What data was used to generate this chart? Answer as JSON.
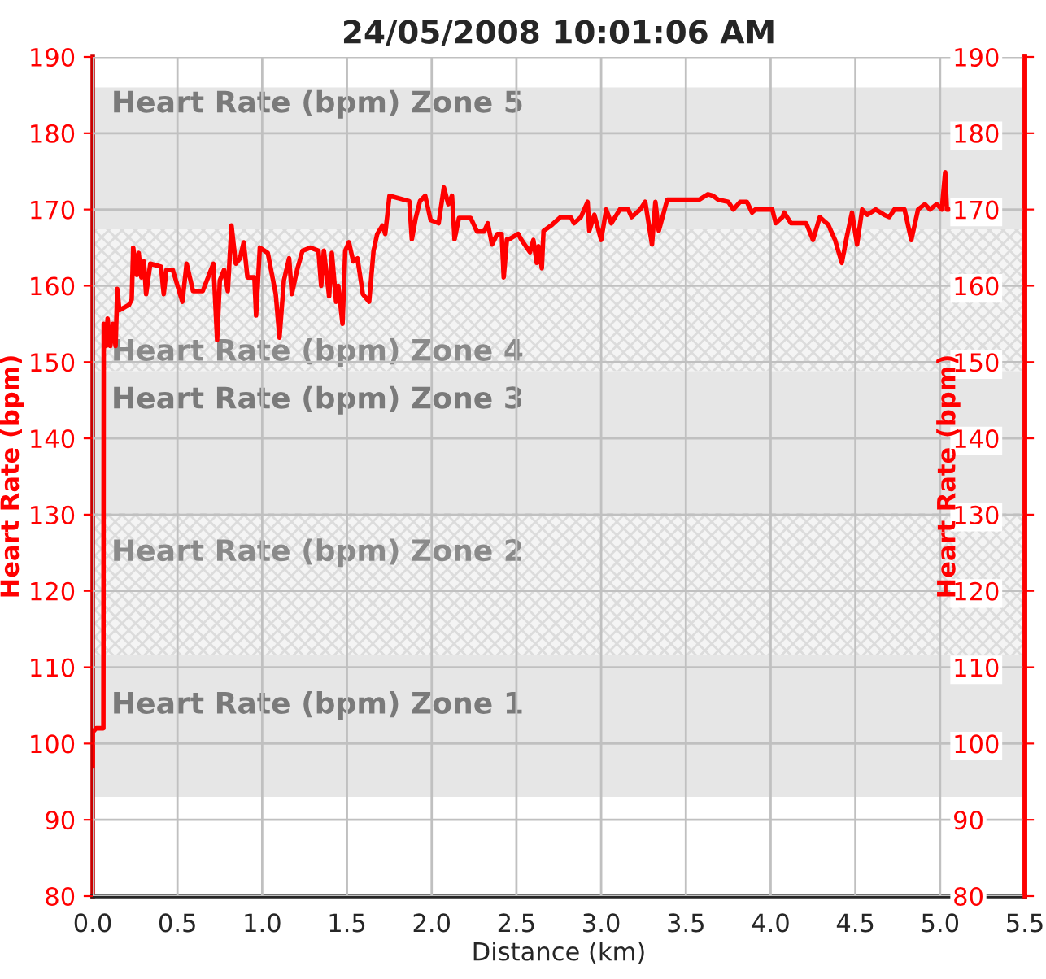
{
  "chart_data": {
    "type": "line",
    "title": "24/05/2008 10:01:06 AM",
    "xlabel": "Distance (km)",
    "ylabel": "Heart Rate (bpm)",
    "y2label": "Heart Rate (bpm)",
    "xlim": [
      0,
      5.5
    ],
    "xticks": [
      {
        "value": 0,
        "label": "0.0"
      },
      0.5,
      {
        "value": 1,
        "label": "1.0"
      },
      1.5,
      {
        "value": 2,
        "label": "2.0"
      },
      2.5,
      {
        "value": 3,
        "label": "3.0"
      },
      3.5,
      {
        "value": 4,
        "label": "4.0"
      },
      4.5,
      {
        "value": 5,
        "label": "5.0"
      },
      5.5
    ],
    "ylim": [
      80,
      190
    ],
    "yticks": [
      80,
      90,
      100,
      110,
      120,
      130,
      140,
      150,
      160,
      170,
      180,
      190
    ],
    "y2lim": [
      80,
      190
    ],
    "y2ticks": [
      80,
      90,
      100,
      110,
      120,
      130,
      140,
      150,
      160,
      170,
      180,
      190
    ],
    "grid": true,
    "marker": "none",
    "line_style": "solid",
    "bands": [
      {
        "axis": "y",
        "from": 167.4,
        "to": 186,
        "label": "Heart Rate (bpm) Zone 5",
        "color": "#e6e6e6"
      },
      {
        "axis": "y",
        "from": 148.8,
        "to": 167.4,
        "label": "Heart Rate (bpm) Zone 4",
        "color": "#f4f4f4"
      },
      {
        "axis": "y",
        "from": 130.2,
        "to": 148.8,
        "label": "Heart Rate (bpm) Zone 3",
        "color": "#e6e6e6"
      },
      {
        "axis": "y",
        "from": 111.6,
        "to": 130.2,
        "label": "Heart Rate (bpm) Zone 2",
        "color": "#f4f4f4"
      },
      {
        "axis": "y",
        "from": 93,
        "to": 111.6,
        "label": "Heart Rate (bpm) Zone 1",
        "color": "#e6e6e6"
      }
    ],
    "series": [
      {
        "color": "#ff0000",
        "x": [
          0,
          0,
          0.02,
          0.063,
          0.065,
          0.079,
          0.088,
          0.104,
          0.12,
          0.135,
          0.145,
          0.157,
          0.214,
          0.23,
          0.239,
          0.261,
          0.271,
          0.287,
          0.302,
          0.315,
          0.34,
          0.403,
          0.419,
          0.435,
          0.472,
          0.529,
          0.554,
          0.592,
          0.649,
          0.712,
          0.734,
          0.75,
          0.775,
          0.797,
          0.819,
          0.844,
          0.869,
          0.891,
          0.913,
          0.954,
          0.964,
          0.986,
          1.033,
          1.08,
          1.102,
          1.128,
          1.159,
          1.175,
          1.206,
          1.238,
          1.285,
          1.332,
          1.348,
          1.364,
          1.395,
          1.411,
          1.436,
          1.449,
          1.474,
          1.49,
          1.512,
          1.537,
          1.562,
          1.594,
          1.631,
          1.657,
          1.679,
          1.71,
          1.726,
          1.751,
          1.868,
          1.883,
          1.906,
          1.931,
          1.962,
          1.994,
          2.041,
          2.072,
          2.098,
          2.12,
          2.135,
          2.161,
          2.23,
          2.268,
          2.309,
          2.331,
          2.356,
          2.387,
          2.413,
          2.425,
          2.444,
          2.45,
          2.51,
          2.53,
          2.58,
          2.6,
          2.62,
          2.63,
          2.65,
          2.66,
          2.71,
          2.76,
          2.82,
          2.84,
          2.88,
          2.92,
          2.93,
          2.96,
          3.0,
          3.03,
          3.06,
          3.11,
          3.16,
          3.18,
          3.23,
          3.26,
          3.3,
          3.32,
          3.34,
          3.39,
          3.58,
          3.63,
          3.66,
          3.69,
          3.75,
          3.78,
          3.82,
          3.86,
          3.89,
          3.91,
          4.01,
          4.03,
          4.07,
          4.08,
          4.12,
          4.21,
          4.25,
          4.29,
          4.34,
          4.38,
          4.42,
          4.45,
          4.48,
          4.51,
          4.54,
          4.57,
          4.62,
          4.67,
          4.7,
          4.73,
          4.79,
          4.83,
          4.87,
          4.91,
          4.94,
          4.98,
          5.01,
          5.03,
          5.04,
          5.05
        ],
        "values": [
          97,
          101.5,
          102,
          102,
          155,
          152.1,
          155.7,
          152.1,
          155,
          152.1,
          159.6,
          156.8,
          157.5,
          158.2,
          165,
          161.4,
          164.3,
          161.1,
          163.2,
          158.9,
          162.9,
          162.5,
          158.9,
          162.1,
          162.1,
          157.9,
          162.9,
          159.3,
          159.3,
          162.9,
          152.9,
          160.7,
          162.1,
          159.3,
          167.9,
          162.9,
          163.6,
          165.7,
          161.1,
          161.1,
          156.1,
          165,
          164.3,
          158.9,
          153.2,
          160.7,
          163.6,
          158.9,
          162.1,
          164.6,
          165,
          164.6,
          160,
          164.6,
          158.6,
          164.3,
          157.9,
          160,
          155,
          164.6,
          165.7,
          163.2,
          163.6,
          158.9,
          157.9,
          164.6,
          166.8,
          167.9,
          166.8,
          171.8,
          171.1,
          166.1,
          168.9,
          171.1,
          171.8,
          168.6,
          168.2,
          172.9,
          170.7,
          171.8,
          166.1,
          168.9,
          168.9,
          167.1,
          167.1,
          168.2,
          165.4,
          166.8,
          166.8,
          161.1,
          166.1,
          166,
          166.8,
          166,
          164.4,
          166,
          163,
          165.2,
          162.3,
          167.2,
          168,
          169,
          169,
          168.2,
          169,
          171,
          167.2,
          169.3,
          166,
          170,
          168.2,
          170,
          170,
          169,
          170,
          171,
          165.4,
          171,
          167.2,
          171.3,
          171.3,
          172,
          171.8,
          171.3,
          171,
          170,
          171,
          171,
          169.6,
          170,
          170,
          168.2,
          169,
          169.6,
          168.2,
          168.2,
          166,
          169,
          168,
          166,
          163,
          166.5,
          169.6,
          165.4,
          170,
          169.3,
          170,
          169.3,
          169,
          170,
          170,
          166,
          170,
          170.7,
          170,
          170.7,
          170,
          174.9,
          170,
          170
        ]
      }
    ]
  }
}
